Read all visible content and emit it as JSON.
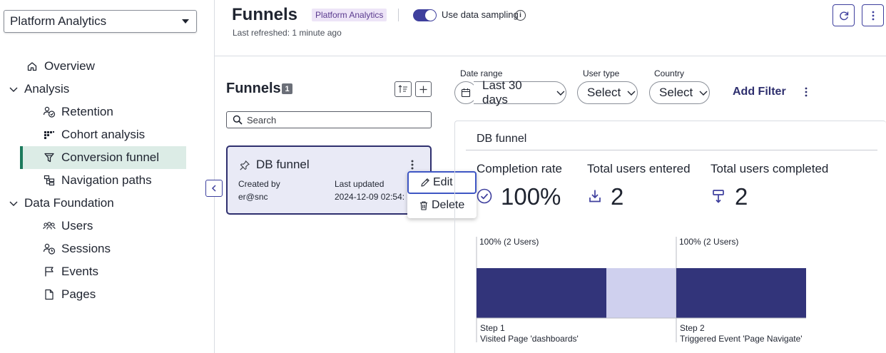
{
  "sidebar": {
    "app_select": "Platform Analytics",
    "items": [
      {
        "label": "Overview",
        "icon": "home-icon"
      },
      {
        "label": "Analysis",
        "icon": "chevron-down-icon"
      },
      {
        "label": "Retention",
        "icon": "retention-icon"
      },
      {
        "label": "Cohort analysis",
        "icon": "cohort-icon"
      },
      {
        "label": "Conversion funnel",
        "icon": "funnel-icon",
        "selected": true
      },
      {
        "label": "Navigation paths",
        "icon": "navigation-paths-icon"
      },
      {
        "label": "Data Foundation",
        "icon": "chevron-down-icon"
      },
      {
        "label": "Users",
        "icon": "users-icon"
      },
      {
        "label": "Sessions",
        "icon": "sessions-icon"
      },
      {
        "label": "Events",
        "icon": "flag-icon"
      },
      {
        "label": "Pages",
        "icon": "page-icon"
      }
    ]
  },
  "header": {
    "title": "Funnels",
    "tag": "Platform Analytics",
    "sampling_label": "Use data sampling",
    "sampling_enabled": true,
    "last_refreshed": "Last refreshed: 1 minute ago"
  },
  "list": {
    "title": "Funnels",
    "count": "1",
    "search_placeholder": "Search",
    "card": {
      "title": "DB funnel",
      "created_by_label": "Created by",
      "created_by": "er@snc",
      "last_updated_label": "Last updated",
      "last_updated": "2024-12-09 02:54:"
    }
  },
  "context_menu": {
    "edit": "Edit",
    "delete": "Delete"
  },
  "filters": {
    "date_range_label": "Date range",
    "date_range_value": "Last 30 days",
    "user_type_label": "User type",
    "user_type_value": "Select",
    "country_label": "Country",
    "country_value": "Select",
    "add_filter": "Add Filter"
  },
  "detail": {
    "title": "DB funnel",
    "metrics": {
      "completion_rate_label": "Completion rate",
      "completion_rate_value": "100%",
      "total_entered_label": "Total users entered",
      "total_entered_value": "2",
      "total_completed_label": "Total users completed",
      "total_completed_value": "2"
    }
  },
  "colors": {
    "accent": "#3e3f9d",
    "bar": "#32347a",
    "bar_dropoff": "#cfd0ee",
    "selected_nav": "#dcece6",
    "selected_nav_border": "#1c7a5c",
    "tag_bg": "#ede4f7"
  },
  "chart_data": {
    "type": "bar",
    "categories": [
      "Step 1",
      "Step 2"
    ],
    "category_descriptions": [
      "Visited Page 'dashboards'",
      "Triggered Event 'Page Navigate'"
    ],
    "values": [
      100,
      100
    ],
    "data_labels": [
      "100% (2 Users)",
      "100% (2 Users)"
    ],
    "ylim": [
      0,
      100
    ],
    "grid": false
  }
}
